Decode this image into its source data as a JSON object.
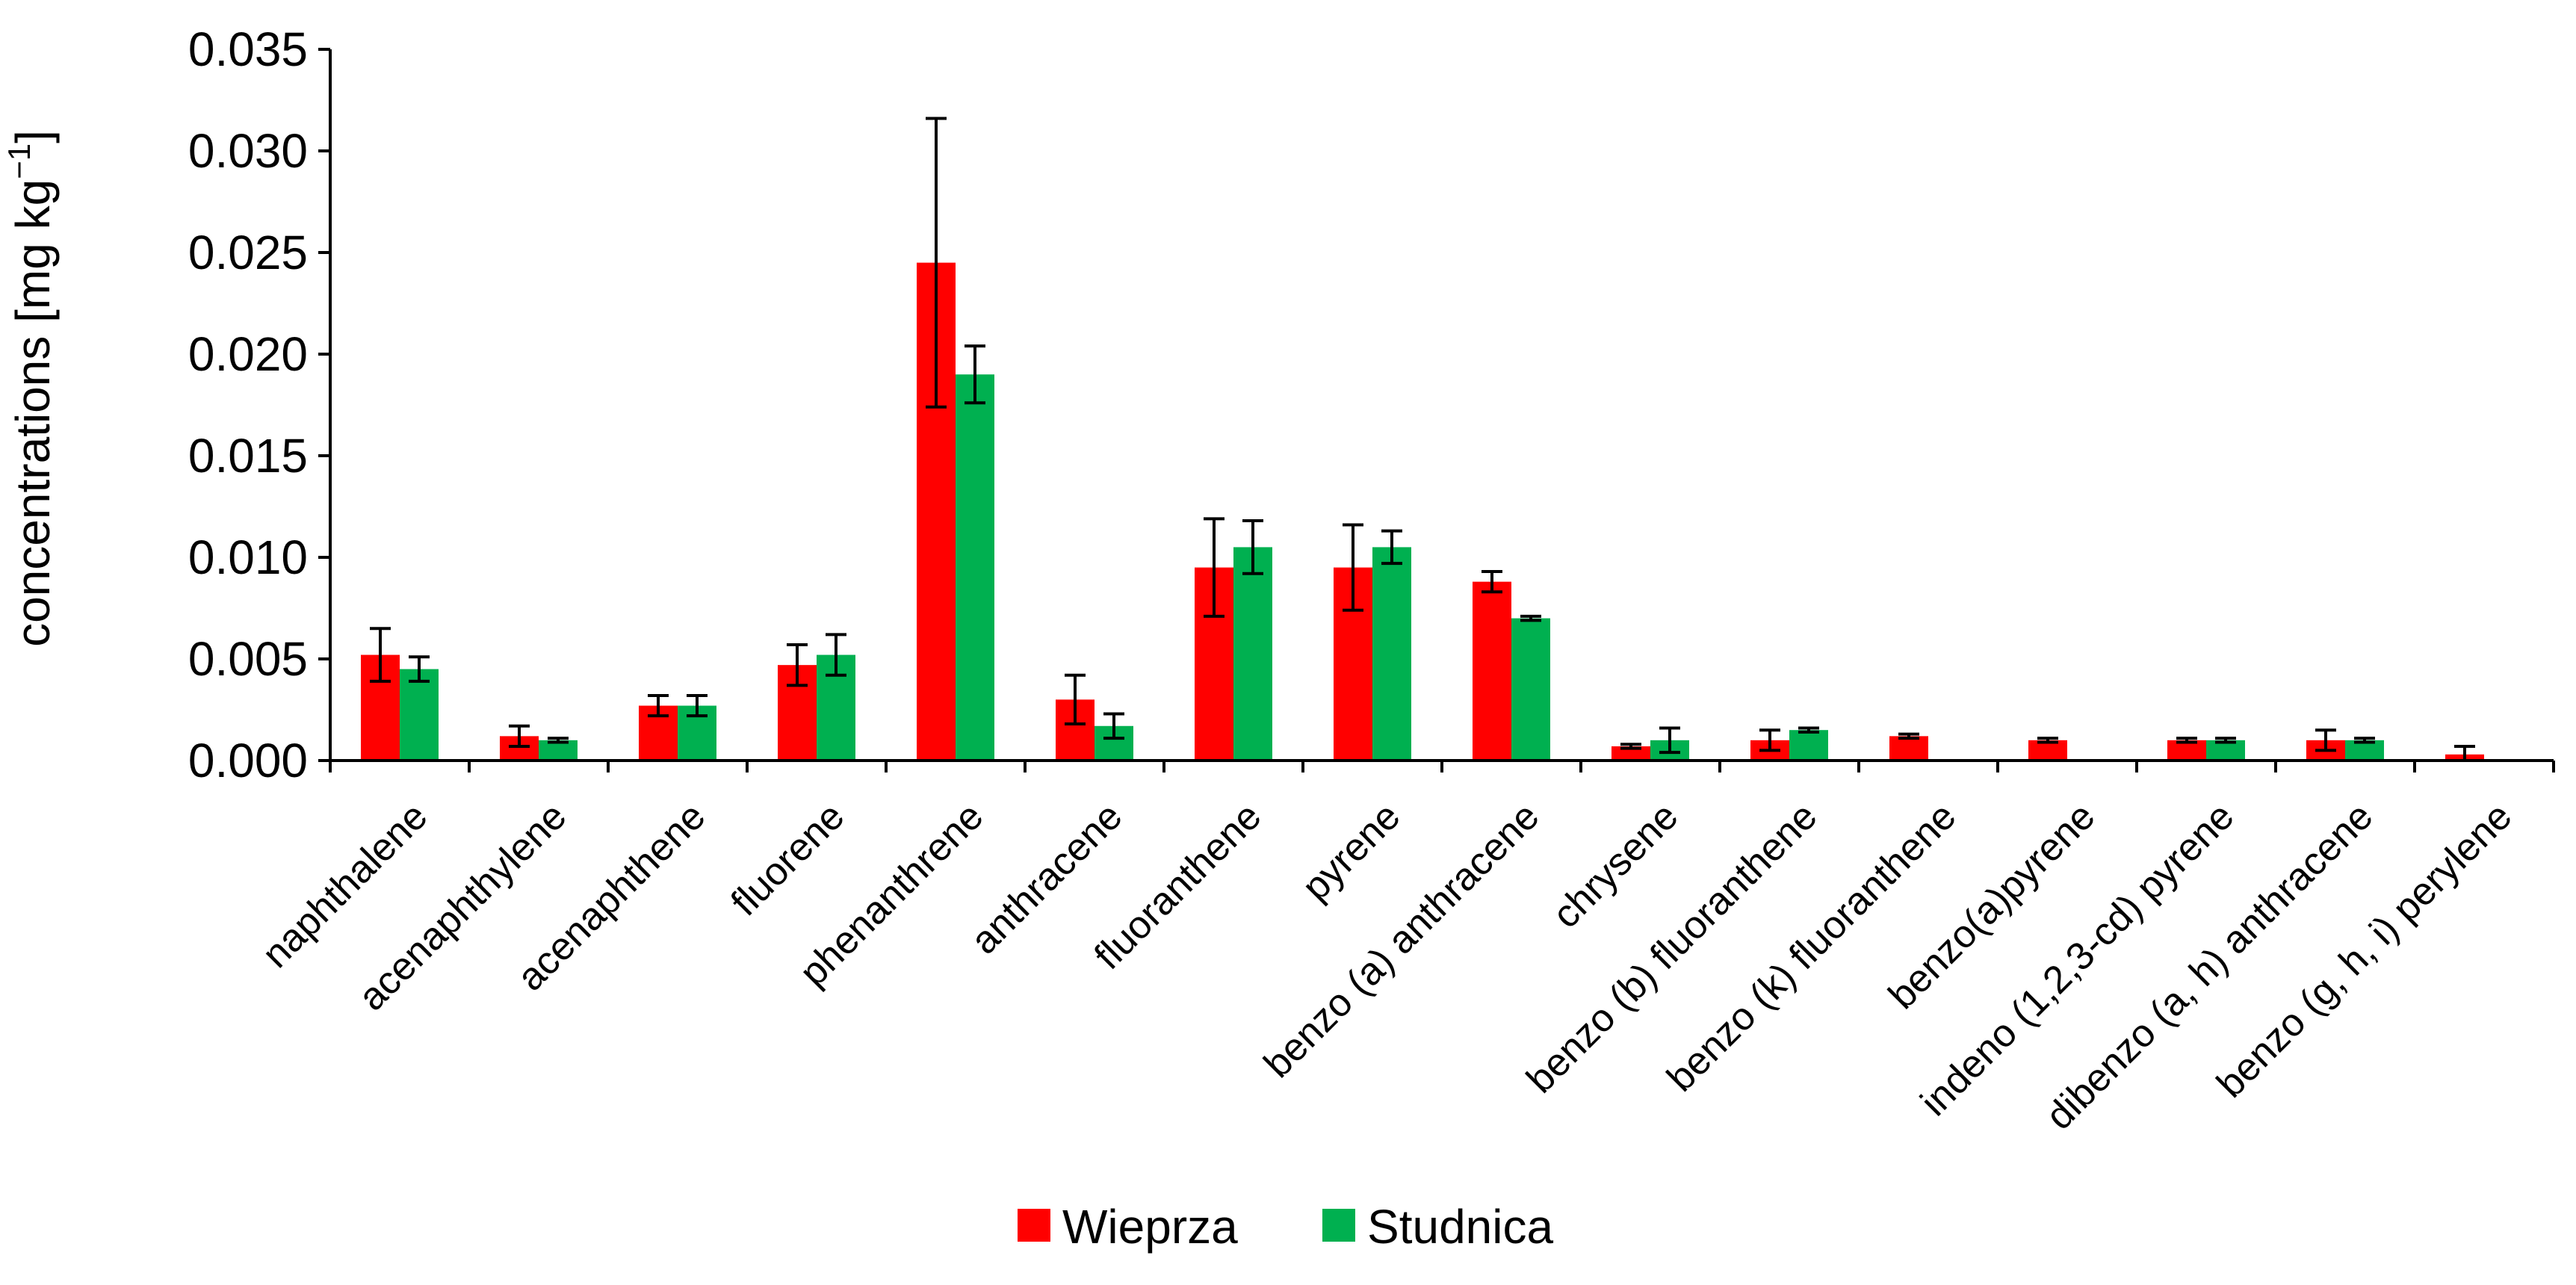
{
  "chart_data": {
    "type": "bar",
    "title": "",
    "xlabel": "",
    "ylabel": {
      "text": "concentrations [mg kg",
      "superscript": "−1",
      "suffix": "]"
    },
    "ylim": [
      0,
      0.035
    ],
    "yticks": [
      "0.000",
      "0.005",
      "0.010",
      "0.015",
      "0.020",
      "0.025",
      "0.030",
      "0.035"
    ],
    "yticks_values": [
      0,
      0.005,
      0.01,
      0.015,
      0.02,
      0.025,
      0.03,
      0.035
    ],
    "grid": false,
    "legend_position": "bottom-center",
    "categories": [
      "naphthalene",
      "acenaphthylene",
      "acenaphthene",
      "fluorene",
      "phenanthrene",
      "anthracene",
      "fluoranthene",
      "pyrene",
      "benzo (a) anthracene",
      "chrysene",
      "benzo (b) fluoranthene",
      "benzo (k) fluoranthene",
      "benzo(a)pyrene",
      "indeno (1,2,3-cd) pyrene",
      "dibenzo (a, h) anthracene",
      "benzo (g, h, i) perylene"
    ],
    "series": [
      {
        "name": "Wieprza",
        "color": "#ff0000",
        "values": [
          0.0052,
          0.0012,
          0.0027,
          0.0047,
          0.0245,
          0.003,
          0.0095,
          0.0095,
          0.0088,
          0.0007,
          0.001,
          0.0012,
          0.001,
          0.001,
          0.001,
          0.0003
        ],
        "errors": [
          0.0013,
          0.0005,
          0.0005,
          0.001,
          0.0071,
          0.0012,
          0.0024,
          0.0021,
          0.0005,
          0.0001,
          0.0005,
          0.0001,
          0.0001,
          0.0001,
          0.0005,
          0.0004
        ]
      },
      {
        "name": "Studnica",
        "color": "#00b050",
        "values": [
          0.0045,
          0.001,
          0.0027,
          0.0052,
          0.019,
          0.0017,
          0.0105,
          0.0105,
          0.007,
          0.001,
          0.0015,
          0,
          0,
          0.001,
          0.001,
          0
        ],
        "errors": [
          0.0006,
          0.0001,
          0.0005,
          0.001,
          0.0014,
          0.0006,
          0.0013,
          0.0008,
          0.0001,
          0.0006,
          0.0001,
          0,
          0,
          0.0001,
          0.0001,
          0
        ]
      }
    ]
  }
}
